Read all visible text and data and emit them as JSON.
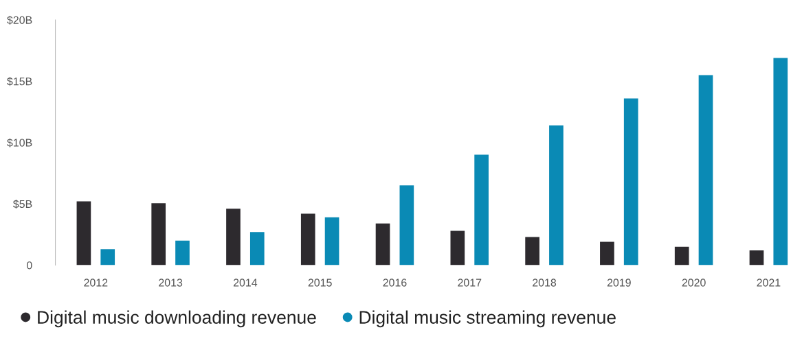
{
  "chart_data": {
    "type": "bar",
    "categories": [
      "2012",
      "2013",
      "2014",
      "2015",
      "2016",
      "2017",
      "2018",
      "2019",
      "2020",
      "2021"
    ],
    "series": [
      {
        "name": "Digital music downloading revenue",
        "color": "#2d2a2e",
        "values": [
          5.2,
          5.05,
          4.6,
          4.2,
          3.4,
          2.8,
          2.3,
          1.9,
          1.5,
          1.2
        ]
      },
      {
        "name": "Digital music streaming revenue",
        "color": "#0a8ab5",
        "values": [
          1.3,
          2.0,
          2.7,
          3.9,
          6.5,
          9.0,
          11.4,
          13.6,
          15.5,
          16.9
        ]
      }
    ],
    "ylim": [
      0,
      20
    ],
    "yticks": [
      {
        "value": 0,
        "label": "0"
      },
      {
        "value": 5,
        "label": "$5B"
      },
      {
        "value": 10,
        "label": "$10B"
      },
      {
        "value": 15,
        "label": "$15B"
      },
      {
        "value": 20,
        "label": "$20B"
      }
    ],
    "grid": false,
    "legend": "bottom left"
  }
}
